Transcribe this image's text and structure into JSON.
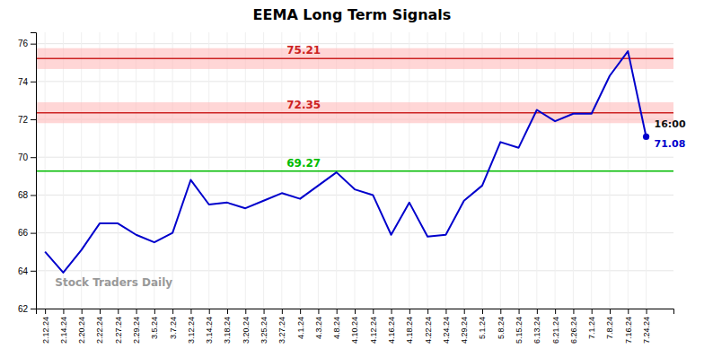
{
  "chart_data": {
    "type": "line",
    "title": "EEMA Long Term Signals",
    "categories": [
      "2.12.24",
      "2.14.24",
      "2.20.24",
      "2.22.24",
      "2.27.24",
      "2.29.24",
      "3.5.24",
      "3.7.24",
      "3.12.24",
      "3.14.24",
      "3.18.24",
      "3.20.24",
      "3.25.24",
      "3.27.24",
      "4.1.24",
      "4.3.24",
      "4.8.24",
      "4.10.24",
      "4.12.24",
      "4.16.24",
      "4.18.24",
      "4.22.24",
      "4.24.24",
      "4.29.24",
      "5.1.24",
      "5.8.24",
      "5.15.24",
      "6.13.24",
      "6.21.24",
      "6.26.24",
      "7.1.24",
      "7.8.24",
      "7.16.24",
      "7.24.24"
    ],
    "values": [
      65.0,
      63.9,
      65.1,
      66.5,
      66.5,
      65.9,
      65.5,
      66.0,
      68.8,
      67.5,
      67.6,
      67.3,
      67.7,
      68.1,
      67.8,
      68.5,
      69.2,
      68.3,
      68.0,
      65.9,
      67.6,
      65.8,
      65.9,
      67.7,
      68.5,
      70.8,
      70.5,
      72.5,
      71.9,
      72.3,
      72.3,
      74.3,
      75.6,
      71.08
    ],
    "color": "#0000cc",
    "ylim": [
      62,
      76.6
    ],
    "yticks": [
      62,
      64,
      66,
      68,
      70,
      72,
      74,
      76
    ],
    "grid": true,
    "reference_lines": [
      {
        "value": 69.27,
        "label": "69.27",
        "color": "#00bb00"
      },
      {
        "value": 72.35,
        "label": "72.35",
        "color": "#cc2222"
      },
      {
        "value": 75.21,
        "label": "75.21",
        "color": "#cc2222"
      }
    ],
    "bands": [
      {
        "from": 71.8,
        "to": 72.9,
        "color": "#ffbbbb"
      },
      {
        "from": 74.66,
        "to": 75.76,
        "color": "#ffbbbb"
      }
    ],
    "annotations": [
      {
        "text": "16:00",
        "color": "#111111"
      },
      {
        "text": "71.08",
        "color": "#0000cc"
      }
    ],
    "watermark": {
      "text": "Stock Traders Daily",
      "color": "#999999"
    }
  }
}
